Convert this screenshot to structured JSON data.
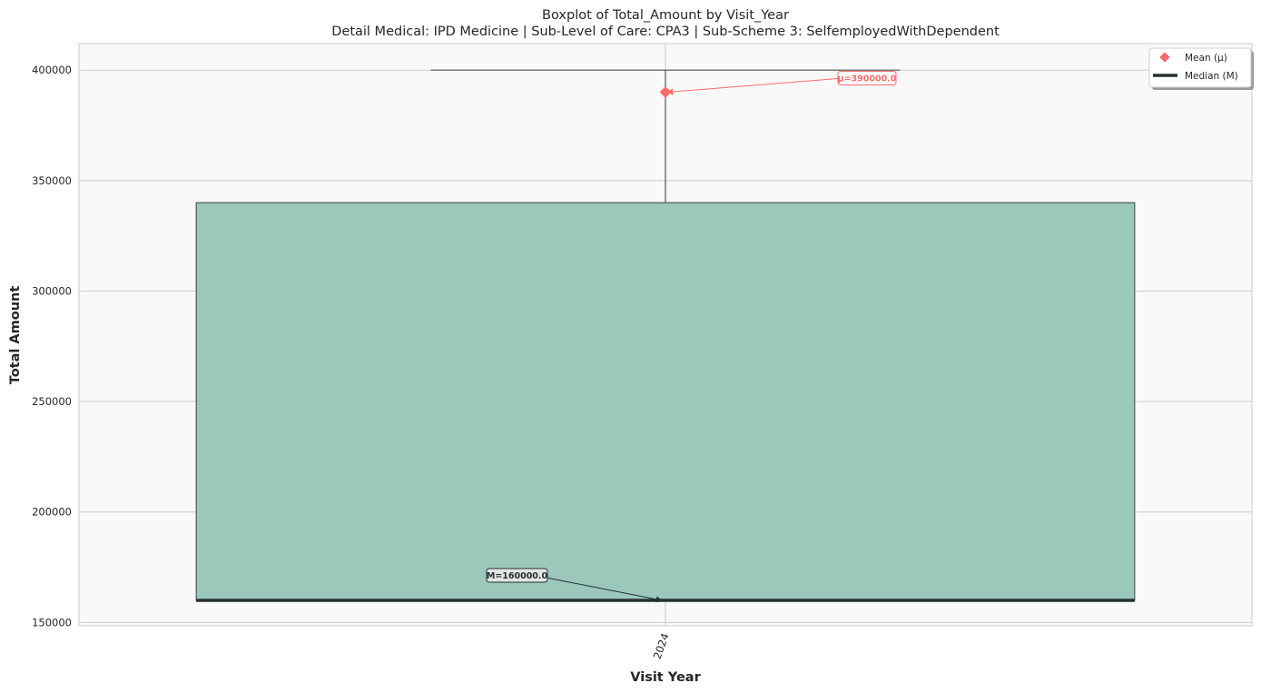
{
  "chart_data": {
    "type": "boxplot",
    "title": "Boxplot of Total_Amount by Visit_Year",
    "subtitle": "Detail Medical: IPD Medicine | Sub-Level of Care: CPA3 | Sub-Scheme 3: SelfemployedWithDependent",
    "xlabel": "Visit Year",
    "ylabel": "Total Amount",
    "categories": [
      "2024"
    ],
    "ylim": [
      148500,
      412000
    ],
    "yticks": [
      150000,
      200000,
      250000,
      300000,
      350000,
      400000
    ],
    "grid": true,
    "boxes": [
      {
        "category": "2024",
        "whisker_low": 160000,
        "q1": 160000,
        "median": 160000,
        "q3": 340000,
        "whisker_high": 400000,
        "mean": 390000
      }
    ],
    "annotations": {
      "mean_label": "μ=390000.0",
      "median_label": "M=160000.0"
    },
    "legend": {
      "placement": "top-right",
      "entries": [
        {
          "key": "mean",
          "label": "Mean (μ)"
        },
        {
          "key": "median",
          "label": "Median (M)"
        }
      ]
    },
    "colors": {
      "box_fill": "#9bc8bb",
      "box_edge": "#4a5a55",
      "median": "#263032",
      "mean": "#ff6b6b",
      "plot_bg": "#f9f9f9",
      "grid": "#cccccc"
    }
  }
}
